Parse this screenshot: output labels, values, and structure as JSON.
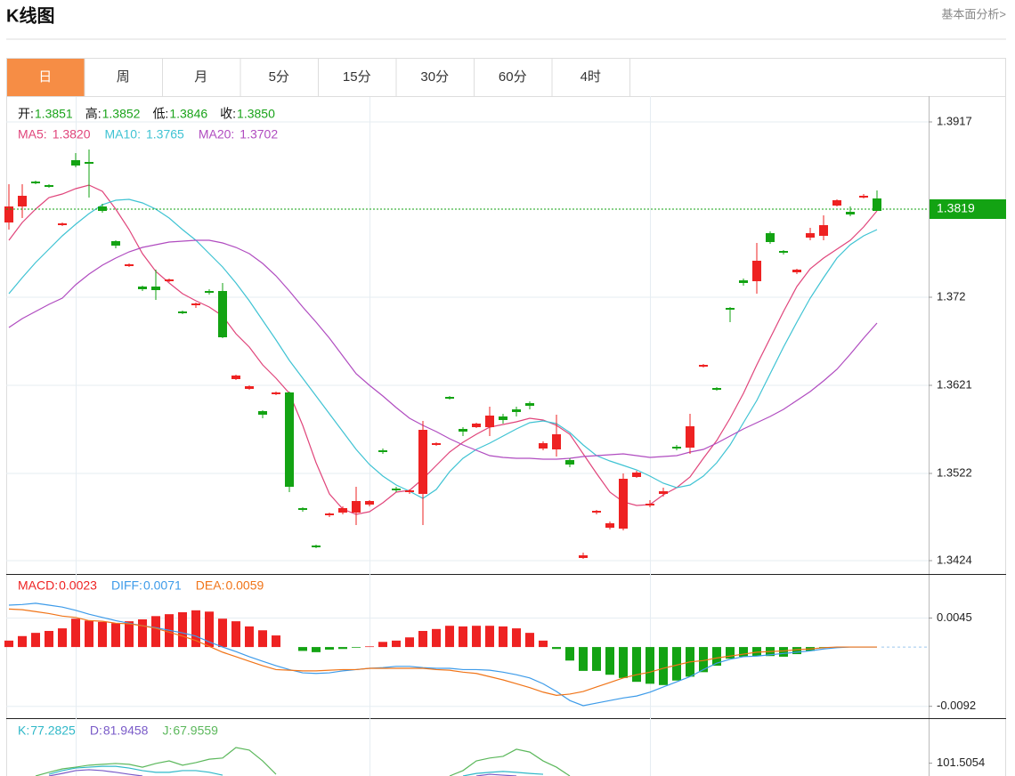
{
  "header": {
    "title": "K线图",
    "link": "基本面分析>"
  },
  "tabs": [
    "日",
    "周",
    "月",
    "5分",
    "15分",
    "30分",
    "60分",
    "4时"
  ],
  "active_tab": 0,
  "chart_data": [
    {
      "type": "candlestick",
      "ohlc_legend": [
        {
          "label": "开:",
          "value": "1.3851"
        },
        {
          "label": "高:",
          "value": "1.3852"
        },
        {
          "label": "低:",
          "value": "1.3846"
        },
        {
          "label": "收:",
          "value": "1.3850"
        }
      ],
      "legend_value_color": "#1aa31a",
      "up_color": "#ee2222",
      "down_color": "#13a313",
      "ylim": [
        1.3411,
        1.3946
      ],
      "yticks": [
        1.3917,
        1.372,
        1.3621,
        1.3522,
        1.3424
      ],
      "grid": true,
      "last_price": 1.3819,
      "last_price_color": "#13a313",
      "ohlc": [
        [
          1.3804,
          1.3847,
          1.3796,
          1.3822
        ],
        [
          1.3822,
          1.3847,
          1.3809,
          1.3834
        ],
        [
          1.385,
          1.3851,
          1.3847,
          1.3848
        ],
        [
          1.3846,
          1.3847,
          1.3843,
          1.3844
        ],
        [
          1.3801,
          1.3804,
          1.38,
          1.3803
        ],
        [
          1.3874,
          1.3882,
          1.3866,
          1.3868
        ],
        [
          1.3872,
          1.3886,
          1.3832,
          1.387
        ],
        [
          1.3822,
          1.3825,
          1.3815,
          1.3817
        ],
        [
          1.3783,
          1.3784,
          1.3775,
          1.3778
        ],
        [
          1.3755,
          1.3758,
          1.3754,
          1.3757
        ],
        [
          1.3732,
          1.3733,
          1.3727,
          1.3729
        ],
        [
          1.3732,
          1.3751,
          1.3717,
          1.3728
        ],
        [
          1.3738,
          1.3741,
          1.3737,
          1.374
        ],
        [
          1.3704,
          1.3705,
          1.3701,
          1.3702
        ],
        [
          1.3711,
          1.3714,
          1.3708,
          1.3713
        ],
        [
          1.3727,
          1.3729,
          1.3723,
          1.3725
        ],
        [
          1.3727,
          1.3736,
          1.3674,
          1.3675
        ],
        [
          1.3628,
          1.3633,
          1.3627,
          1.3632
        ],
        [
          1.3617,
          1.3621,
          1.3616,
          1.362
        ],
        [
          1.3592,
          1.3593,
          1.3584,
          1.3588
        ],
        [
          1.3611,
          1.3614,
          1.361,
          1.3613
        ],
        [
          1.3613,
          1.3614,
          1.3501,
          1.3507
        ],
        [
          1.3483,
          1.3484,
          1.3479,
          1.3481
        ],
        [
          1.3441,
          1.3442,
          1.3438,
          1.3439
        ],
        [
          1.3475,
          1.3478,
          1.3473,
          1.3477
        ],
        [
          1.3478,
          1.3485,
          1.3476,
          1.3483
        ],
        [
          1.3478,
          1.3507,
          1.3464,
          1.3491
        ],
        [
          1.3487,
          1.3492,
          1.3485,
          1.3491
        ],
        [
          1.3548,
          1.355,
          1.3544,
          1.3546
        ],
        [
          1.3505,
          1.3507,
          1.3501,
          1.3503
        ],
        [
          1.3501,
          1.3504,
          1.3499,
          1.3503
        ],
        [
          1.3499,
          1.3581,
          1.3464,
          1.3571
        ],
        [
          1.3554,
          1.3557,
          1.3553,
          1.3556
        ],
        [
          1.3608,
          1.3609,
          1.3605,
          1.3606
        ],
        [
          1.3572,
          1.3574,
          1.3564,
          1.3569
        ],
        [
          1.3574,
          1.3579,
          1.3573,
          1.3578
        ],
        [
          1.3574,
          1.3597,
          1.3564,
          1.3587
        ],
        [
          1.3586,
          1.3589,
          1.3578,
          1.3582
        ],
        [
          1.3594,
          1.3597,
          1.3586,
          1.3591
        ],
        [
          1.3601,
          1.3603,
          1.3594,
          1.3598
        ],
        [
          1.355,
          1.3558,
          1.3548,
          1.3556
        ],
        [
          1.3549,
          1.3588,
          1.3541,
          1.3566
        ],
        [
          1.3537,
          1.3539,
          1.3529,
          1.3532
        ],
        [
          1.3427,
          1.3433,
          1.3426,
          1.343
        ],
        [
          1.3478,
          1.3481,
          1.3476,
          1.348
        ],
        [
          1.3461,
          1.3468,
          1.3459,
          1.3466
        ],
        [
          1.346,
          1.3522,
          1.3458,
          1.3516
        ],
        [
          1.3518,
          1.3525,
          1.3517,
          1.3523
        ],
        [
          1.3486,
          1.3492,
          1.3484,
          1.3488
        ],
        [
          1.3499,
          1.3506,
          1.3496,
          1.3502
        ],
        [
          1.3552,
          1.3554,
          1.3548,
          1.355
        ],
        [
          1.3551,
          1.3589,
          1.3544,
          1.3575
        ],
        [
          1.3642,
          1.3645,
          1.3641,
          1.3644
        ],
        [
          1.3618,
          1.3619,
          1.3615,
          1.3616
        ],
        [
          1.3708,
          1.3709,
          1.3692,
          1.3706
        ],
        [
          1.3739,
          1.3741,
          1.3733,
          1.3736
        ],
        [
          1.3738,
          1.3781,
          1.3724,
          1.3761
        ],
        [
          1.3792,
          1.3794,
          1.378,
          1.3782
        ],
        [
          1.3772,
          1.3773,
          1.3768,
          1.377
        ],
        [
          1.3748,
          1.3752,
          1.3746,
          1.3751
        ],
        [
          1.3787,
          1.3798,
          1.3784,
          1.3792
        ],
        [
          1.3789,
          1.3812,
          1.3784,
          1.3801
        ],
        [
          1.3823,
          1.383,
          1.3822,
          1.3829
        ],
        [
          1.3816,
          1.3822,
          1.3811,
          1.3813
        ],
        [
          1.3832,
          1.3836,
          1.3831,
          1.3834
        ],
        [
          1.3831,
          1.384,
          1.3817,
          1.3817
        ]
      ],
      "series": [
        {
          "name": "MA5:",
          "legend_value": "1.3820",
          "color": "#e0457b",
          "values": [
            1.3784,
            1.3804,
            1.3819,
            1.3832,
            1.3836,
            1.3842,
            1.3846,
            1.3839,
            1.3819,
            1.3796,
            1.3769,
            1.3749,
            1.3736,
            1.3724,
            1.3716,
            1.3709,
            1.3699,
            1.3679,
            1.3664,
            1.3644,
            1.3629,
            1.3612,
            1.3576,
            1.3534,
            1.3499,
            1.3482,
            1.3476,
            1.3479,
            1.3489,
            1.3501,
            1.3503,
            1.3516,
            1.3531,
            1.3546,
            1.3557,
            1.3566,
            1.3574,
            1.3577,
            1.358,
            1.3584,
            1.3582,
            1.3576,
            1.3566,
            1.3544,
            1.3522,
            1.3501,
            1.349,
            1.3486,
            1.3487,
            1.3498,
            1.3506,
            1.3518,
            1.3539,
            1.3559,
            1.3584,
            1.3612,
            1.3644,
            1.3674,
            1.3704,
            1.3732,
            1.3752,
            1.3764,
            1.3774,
            1.3784,
            1.3799,
            1.3817
          ]
        },
        {
          "name": "MA10:",
          "legend_value": "1.3765",
          "color": "#3fc3d3",
          "values": [
            1.3724,
            1.3742,
            1.3759,
            1.3774,
            1.3789,
            1.3802,
            1.3814,
            1.3824,
            1.3829,
            1.383,
            1.3826,
            1.3819,
            1.3809,
            1.3796,
            1.3784,
            1.3769,
            1.3754,
            1.3736,
            1.3716,
            1.3694,
            1.3672,
            1.3649,
            1.3629,
            1.3609,
            1.3589,
            1.3569,
            1.3549,
            1.3532,
            1.3519,
            1.3509,
            1.3502,
            1.3494,
            1.3504,
            1.3524,
            1.3539,
            1.3549,
            1.3556,
            1.3564,
            1.3572,
            1.3579,
            1.3581,
            1.3578,
            1.3568,
            1.3554,
            1.3542,
            1.3536,
            1.3531,
            1.3526,
            1.3519,
            1.3511,
            1.3506,
            1.3509,
            1.3519,
            1.3534,
            1.3554,
            1.3579,
            1.3604,
            1.3634,
            1.3664,
            1.3692,
            1.3719,
            1.3742,
            1.3764,
            1.3779,
            1.3789,
            1.3796
          ]
        },
        {
          "name": "MA20:",
          "legend_value": "1.3702",
          "color": "#b04cc0",
          "values": [
            1.3686,
            1.3696,
            1.3704,
            1.3712,
            1.3719,
            1.3734,
            1.3746,
            1.3756,
            1.3764,
            1.3771,
            1.3776,
            1.3779,
            1.3782,
            1.3783,
            1.3784,
            1.3784,
            1.3781,
            1.3776,
            1.3769,
            1.3758,
            1.3744,
            1.3727,
            1.3709,
            1.3692,
            1.3674,
            1.3654,
            1.3634,
            1.3621,
            1.3609,
            1.3596,
            1.3584,
            1.3576,
            1.3569,
            1.3561,
            1.3554,
            1.3548,
            1.3542,
            1.354,
            1.3539,
            1.3539,
            1.3538,
            1.3538,
            1.3539,
            1.3541,
            1.3542,
            1.3543,
            1.3544,
            1.3542,
            1.354,
            1.3541,
            1.3542,
            1.3546,
            1.3549,
            1.3556,
            1.3564,
            1.3572,
            1.3579,
            1.3586,
            1.3594,
            1.3604,
            1.3614,
            1.3626,
            1.3639,
            1.3656,
            1.3674,
            1.3691
          ]
        }
      ]
    },
    {
      "type": "macd",
      "legend": {
        "label": "MACD:",
        "value": "0.0023"
      },
      "up_color": "#ee2222",
      "down_color": "#13a313",
      "ylim": [
        -0.0109,
        0.0112
      ],
      "yticks": [
        0.0045,
        -0.0092
      ],
      "grid": true,
      "bars": [
        0.001,
        0.0017,
        0.0022,
        0.0025,
        0.0029,
        0.0044,
        0.0041,
        0.0039,
        0.0037,
        0.004,
        0.0043,
        0.0048,
        0.0051,
        0.0054,
        0.0057,
        0.0055,
        0.0044,
        0.004,
        0.0032,
        0.0026,
        0.0018,
        0,
        -0.0006,
        -0.0008,
        -0.0004,
        -0.0003,
        -0.0001,
        0.0001,
        0.0008,
        0.001,
        0.0015,
        0.0025,
        0.0028,
        0.0033,
        0.0032,
        0.0033,
        0.0033,
        0.0032,
        0.0029,
        0.0022,
        0.001,
        -0.0003,
        -0.0021,
        -0.0037,
        -0.0037,
        -0.0043,
        -0.0048,
        -0.0054,
        -0.0057,
        -0.0059,
        -0.0052,
        -0.0046,
        -0.0039,
        -0.0029,
        -0.0018,
        -0.0015,
        -0.0014,
        -0.0014,
        -0.0015,
        -0.0011,
        -0.0006,
        -0.0001,
        0,
        0,
        0,
        0
      ],
      "series": [
        {
          "name": "DIFF:",
          "legend_value": "0.0071",
          "color": "#3d9be9",
          "values": [
            0.0065,
            0.0066,
            0.0068,
            0.0065,
            0.0062,
            0.0057,
            0.0051,
            0.0046,
            0.0041,
            0.0037,
            0.0033,
            0.003,
            0.0026,
            0.0022,
            0.0017,
            0.0008,
            0,
            -0.0007,
            -0.0015,
            -0.0022,
            -0.0029,
            -0.0035,
            -0.004,
            -0.0041,
            -0.004,
            -0.0037,
            -0.0035,
            -0.0033,
            -0.0032,
            -0.003,
            -0.003,
            -0.0032,
            -0.0033,
            -0.0033,
            -0.0035,
            -0.0035,
            -0.0036,
            -0.0039,
            -0.0043,
            -0.0048,
            -0.0057,
            -0.0069,
            -0.0083,
            -0.0091,
            -0.0087,
            -0.0083,
            -0.0079,
            -0.0076,
            -0.007,
            -0.0062,
            -0.0054,
            -0.0046,
            -0.0035,
            -0.0025,
            -0.0019,
            -0.0015,
            -0.0014,
            -0.0012,
            -0.001,
            -0.0008,
            -0.0006,
            -0.0003,
            -0.0001,
            0,
            0,
            0
          ]
        },
        {
          "name": "DEA:",
          "legend_value": "0.0059",
          "color": "#f07418",
          "values": [
            0.0059,
            0.0058,
            0.0055,
            0.0052,
            0.0048,
            0.0046,
            0.0041,
            0.004,
            0.0037,
            0.0036,
            0.0033,
            0.0029,
            0.0023,
            0.0017,
            0.001,
            0.0001,
            -0.0008,
            -0.0015,
            -0.0022,
            -0.0029,
            -0.0035,
            -0.0036,
            -0.0037,
            -0.0037,
            -0.0036,
            -0.0035,
            -0.0035,
            -0.0033,
            -0.0033,
            -0.0033,
            -0.0033,
            -0.0033,
            -0.0035,
            -0.0036,
            -0.0039,
            -0.0041,
            -0.0046,
            -0.0051,
            -0.0057,
            -0.0063,
            -0.007,
            -0.0075,
            -0.0073,
            -0.0069,
            -0.0062,
            -0.0055,
            -0.0048,
            -0.0043,
            -0.0039,
            -0.0033,
            -0.0028,
            -0.0023,
            -0.0021,
            -0.0017,
            -0.0014,
            -0.0011,
            -0.0008,
            -0.0007,
            -0.0006,
            -0.0004,
            -0.0003,
            -0.0001,
            0,
            0,
            0,
            0
          ]
        }
      ]
    },
    {
      "type": "line",
      "ylim": [
        97,
        117
      ],
      "yticks": [
        101.5054
      ],
      "series": [
        {
          "name": "K:",
          "legend_value": "77.2825",
          "color": "#2fb8c8",
          "values": [
            null,
            null,
            null,
            97.6,
            98.9,
            99.8,
            100.1,
            100.4,
            100.4,
            99.8,
            98.9,
            98.3,
            98.3,
            98.9,
            98.9,
            98.3,
            97.3,
            null,
            null,
            null,
            null,
            null,
            null,
            null,
            null,
            null,
            null,
            null,
            null,
            null,
            null,
            null,
            null,
            null,
            97,
            97.9,
            98.3,
            98.6,
            98.3,
            97.9,
            97.6,
            null,
            null,
            null,
            null,
            null,
            null,
            null,
            null,
            null,
            null,
            null,
            null,
            null,
            null,
            null,
            null,
            null,
            null,
            null,
            null,
            null,
            null,
            null,
            null,
            null
          ]
        },
        {
          "name": "D:",
          "legend_value": "81.9458",
          "color": "#7a5bc8",
          "values": [
            null,
            null,
            null,
            97,
            97.9,
            98.9,
            99.2,
            98.9,
            98.3,
            97.6,
            97,
            null,
            null,
            null,
            null,
            null,
            null,
            null,
            null,
            null,
            null,
            null,
            null,
            null,
            null,
            null,
            null,
            null,
            null,
            null,
            null,
            null,
            null,
            null,
            null,
            97,
            97.6,
            97.3,
            97,
            null,
            null,
            null,
            null,
            null,
            null,
            null,
            null,
            null,
            null,
            null,
            null,
            null,
            null,
            null,
            null,
            null,
            null,
            null,
            null,
            null,
            null,
            null,
            null,
            null,
            null,
            null
          ]
        },
        {
          "name": "J:",
          "legend_value": "67.9559",
          "color": "#5cb85c",
          "values": [
            null,
            null,
            97,
            98.3,
            99.5,
            100.1,
            100.8,
            101.1,
            101.4,
            101.1,
            100.1,
            101.4,
            102.3,
            100.8,
            101.7,
            102.9,
            103.3,
            107,
            106.1,
            102.3,
            97.6,
            null,
            null,
            null,
            null,
            null,
            null,
            null,
            null,
            null,
            null,
            null,
            null,
            97,
            98.9,
            102.3,
            103.3,
            103.9,
            106.4,
            105.4,
            102.3,
            100.1,
            97,
            null,
            null,
            null,
            null,
            null,
            null,
            null,
            null,
            null,
            null,
            null,
            null,
            null,
            null,
            null,
            null,
            null,
            null,
            null,
            null,
            null,
            null,
            null
          ]
        }
      ]
    }
  ]
}
